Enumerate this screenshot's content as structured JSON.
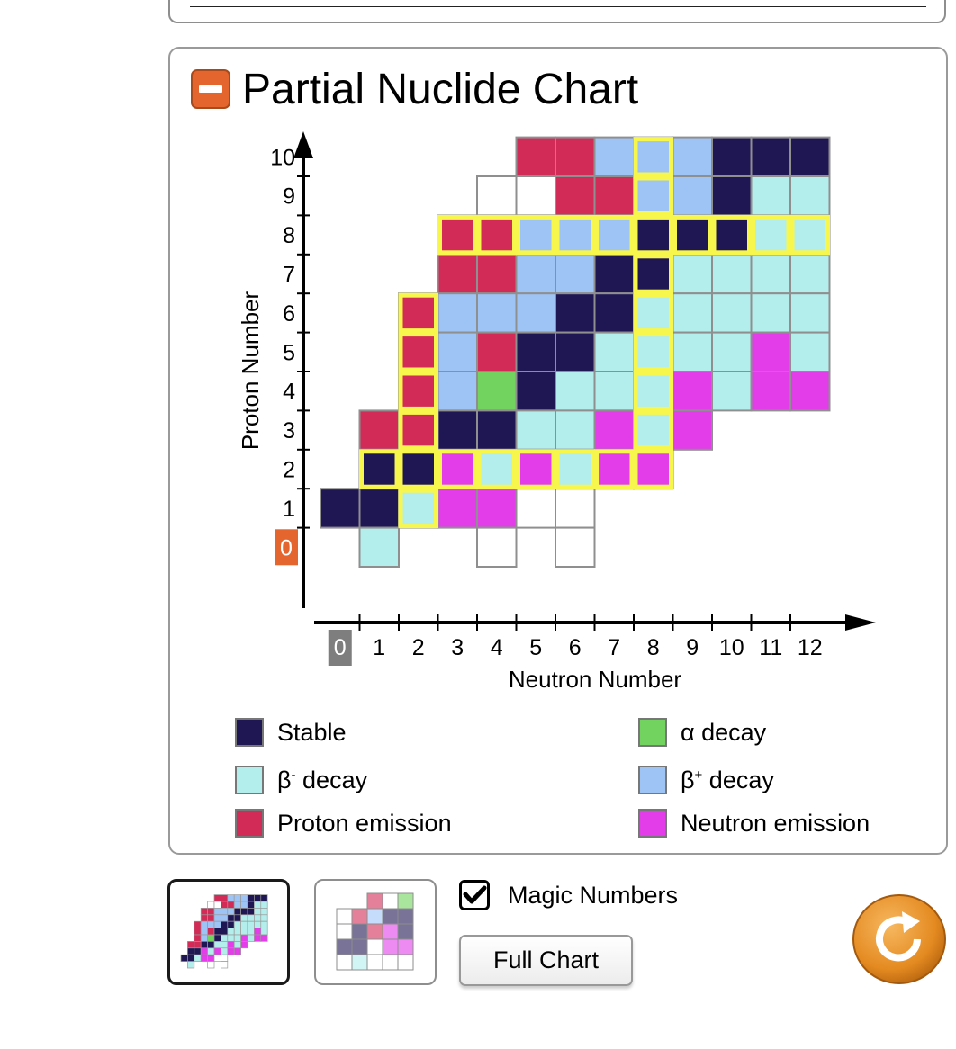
{
  "title": "Partial Nuclide Chart",
  "axes": {
    "proton_label": "Proton Number",
    "neutron_label": "Neutron Number",
    "proton_ticks": [
      "0",
      "1",
      "2",
      "3",
      "4",
      "5",
      "6",
      "7",
      "8",
      "9",
      "10"
    ],
    "neutron_ticks": [
      "0",
      "1",
      "2",
      "3",
      "4",
      "5",
      "6",
      "7",
      "8",
      "9",
      "10",
      "11",
      "12"
    ]
  },
  "colors": {
    "S": "#1f1654",
    "M": "#b3eeec",
    "P": "#d32b58",
    "A": "#72d35e",
    "B": "#9ec4f6",
    "N": "#e23de9",
    "E": "#ffffff",
    "magic": "#f7f64c",
    "accent": "#e4652d",
    "zero_neutron_badge": "#7e7e7e"
  },
  "chart_data": {
    "type": "heatmap",
    "title": "Partial Nuclide Chart",
    "xlabel": "Neutron Number",
    "ylabel": "Proton Number",
    "x_range": [
      0,
      12
    ],
    "y_range": [
      0,
      10
    ],
    "legend_codes": {
      "S": "Stable",
      "M": "β- decay",
      "P": "Proton emission",
      "A": "α decay",
      "B": "β+ decay",
      "N": "Neutron emission",
      "E": "unknown"
    },
    "rows": [
      {
        "z": 10,
        "cells": [
          [
            5,
            "P"
          ],
          [
            6,
            "P"
          ],
          [
            7,
            "B"
          ],
          [
            8,
            "B"
          ],
          [
            9,
            "B"
          ],
          [
            10,
            "S"
          ],
          [
            11,
            "S"
          ],
          [
            12,
            "S"
          ]
        ]
      },
      {
        "z": 9,
        "cells": [
          [
            4,
            "E"
          ],
          [
            5,
            "E"
          ],
          [
            6,
            "P"
          ],
          [
            7,
            "P"
          ],
          [
            8,
            "B"
          ],
          [
            9,
            "B"
          ],
          [
            10,
            "S"
          ],
          [
            11,
            "M"
          ],
          [
            12,
            "M"
          ]
        ]
      },
      {
        "z": 8,
        "cells": [
          [
            3,
            "P"
          ],
          [
            4,
            "P"
          ],
          [
            5,
            "B"
          ],
          [
            6,
            "B"
          ],
          [
            7,
            "B"
          ],
          [
            8,
            "S"
          ],
          [
            9,
            "S"
          ],
          [
            10,
            "S"
          ],
          [
            11,
            "M"
          ],
          [
            12,
            "M"
          ]
        ]
      },
      {
        "z": 7,
        "cells": [
          [
            3,
            "P"
          ],
          [
            4,
            "P"
          ],
          [
            5,
            "B"
          ],
          [
            6,
            "B"
          ],
          [
            7,
            "S"
          ],
          [
            8,
            "S"
          ],
          [
            9,
            "M"
          ],
          [
            10,
            "M"
          ],
          [
            11,
            "M"
          ],
          [
            12,
            "M"
          ]
        ]
      },
      {
        "z": 6,
        "cells": [
          [
            2,
            "P"
          ],
          [
            3,
            "B"
          ],
          [
            4,
            "B"
          ],
          [
            5,
            "B"
          ],
          [
            6,
            "S"
          ],
          [
            7,
            "S"
          ],
          [
            8,
            "M"
          ],
          [
            9,
            "M"
          ],
          [
            10,
            "M"
          ],
          [
            11,
            "M"
          ],
          [
            12,
            "M"
          ]
        ]
      },
      {
        "z": 5,
        "cells": [
          [
            2,
            "P"
          ],
          [
            3,
            "B"
          ],
          [
            4,
            "P"
          ],
          [
            5,
            "S"
          ],
          [
            6,
            "S"
          ],
          [
            7,
            "M"
          ],
          [
            8,
            "M"
          ],
          [
            9,
            "M"
          ],
          [
            10,
            "M"
          ],
          [
            11,
            "N"
          ],
          [
            12,
            "M"
          ]
        ]
      },
      {
        "z": 4,
        "cells": [
          [
            2,
            "P"
          ],
          [
            3,
            "B"
          ],
          [
            4,
            "A"
          ],
          [
            5,
            "S"
          ],
          [
            6,
            "M"
          ],
          [
            7,
            "M"
          ],
          [
            8,
            "M"
          ],
          [
            9,
            "N"
          ],
          [
            10,
            "M"
          ],
          [
            11,
            "N"
          ],
          [
            12,
            "N"
          ]
        ]
      },
      {
        "z": 3,
        "cells": [
          [
            1,
            "P"
          ],
          [
            2,
            "P"
          ],
          [
            3,
            "S"
          ],
          [
            4,
            "S"
          ],
          [
            5,
            "M"
          ],
          [
            6,
            "M"
          ],
          [
            7,
            "N"
          ],
          [
            8,
            "M"
          ],
          [
            9,
            "N"
          ]
        ]
      },
      {
        "z": 2,
        "cells": [
          [
            1,
            "S"
          ],
          [
            2,
            "S"
          ],
          [
            3,
            "N"
          ],
          [
            4,
            "M"
          ],
          [
            5,
            "N"
          ],
          [
            6,
            "M"
          ],
          [
            7,
            "N"
          ],
          [
            8,
            "N"
          ]
        ]
      },
      {
        "z": 1,
        "cells": [
          [
            0,
            "S"
          ],
          [
            1,
            "S"
          ],
          [
            2,
            "M"
          ],
          [
            3,
            "N"
          ],
          [
            4,
            "N"
          ],
          [
            5,
            "E"
          ],
          [
            6,
            "E"
          ]
        ]
      },
      {
        "z": 0,
        "cells": [
          [
            1,
            "M"
          ],
          [
            4,
            "E"
          ],
          [
            6,
            "E"
          ]
        ]
      }
    ],
    "magic_numbers": [
      2,
      8
    ]
  },
  "legend": {
    "stable": "Stable",
    "beta_minus": "β",
    "beta_minus_sup": "-",
    "beta_minus_rest": " decay",
    "proton": "Proton emission",
    "alpha": "α decay",
    "beta_plus": "β",
    "beta_plus_sup": "+",
    "beta_plus_rest": " decay",
    "neutron": "Neutron emission"
  },
  "controls": {
    "magic_label": "Magic Numbers",
    "magic_checked": true,
    "full_chart_label": "Full Chart"
  }
}
